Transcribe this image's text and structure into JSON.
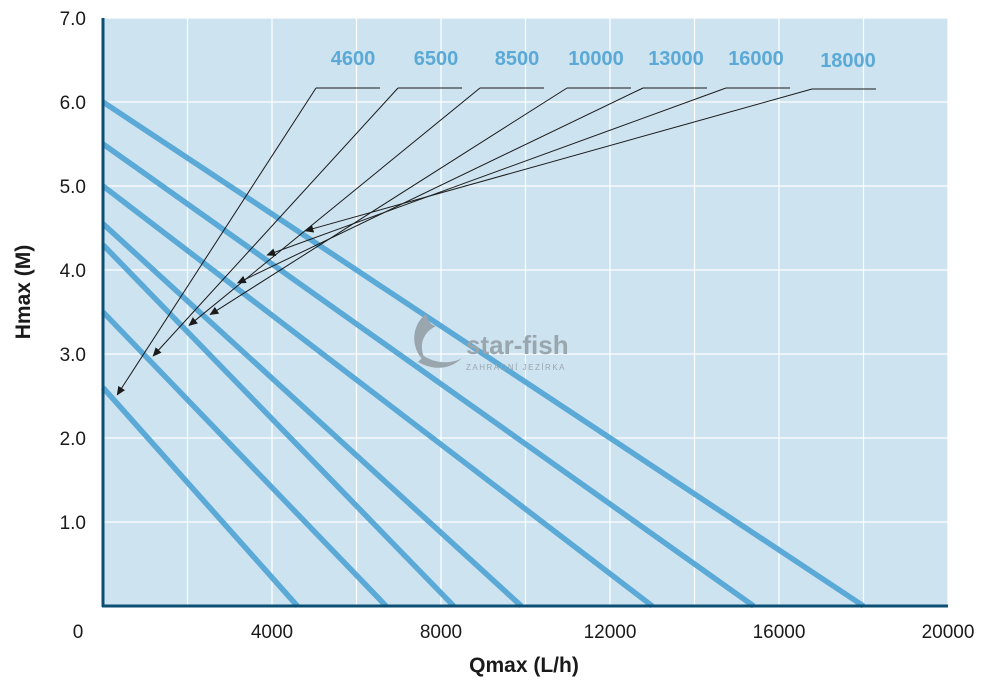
{
  "chart_data": {
    "type": "line",
    "xlabel": "Qmax (L/h)",
    "ylabel": "Hmax (M)",
    "xlim": [
      0,
      20000
    ],
    "ylim": [
      0,
      7.0
    ],
    "x_ticks": [
      "0",
      "4000",
      "8000",
      "12000",
      "16000",
      "20000"
    ],
    "y_ticks": [
      "1.0",
      "2.0",
      "3.0",
      "4.0",
      "5.0",
      "6.0",
      "7.0"
    ],
    "grid": true,
    "series": [
      {
        "name": "4600",
        "points": [
          [
            0,
            2.6
          ],
          [
            4600,
            0
          ]
        ]
      },
      {
        "name": "6500",
        "points": [
          [
            0,
            3.5
          ],
          [
            6700,
            0
          ]
        ]
      },
      {
        "name": "8500",
        "points": [
          [
            0,
            4.3
          ],
          [
            8300,
            0
          ]
        ]
      },
      {
        "name": "10000",
        "points": [
          [
            0,
            4.55
          ],
          [
            9900,
            0
          ]
        ]
      },
      {
        "name": "13000",
        "points": [
          [
            0,
            5.0
          ],
          [
            13000,
            0
          ]
        ]
      },
      {
        "name": "16000",
        "points": [
          [
            0,
            5.5
          ],
          [
            15400,
            0
          ]
        ]
      },
      {
        "name": "18000",
        "points": [
          [
            0,
            6.0
          ],
          [
            18000,
            0
          ]
        ]
      }
    ],
    "colors": {
      "background": "#cde3f0",
      "line": "#5aa9d6",
      "axis": "#0d4f73",
      "label": "#5aa9d6"
    }
  },
  "watermark": {
    "brand": "star-fish",
    "subtitle": "ZAHRADNÍ JEZÍRKA"
  }
}
